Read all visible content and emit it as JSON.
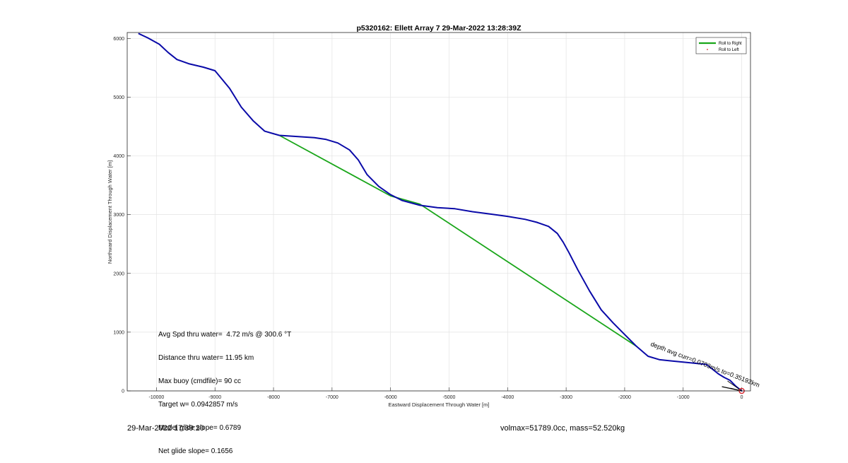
{
  "chart_data": {
    "type": "line",
    "title": "p5320162: Ellett Array 7 29-Mar-2022 13:28:39Z",
    "xlabel": "Eastward Displacement Through Water [m]",
    "ylabel": "Northward Displacement Through Water [m]",
    "xlim": [
      -10500,
      150
    ],
    "ylim": [
      0,
      6100
    ],
    "xticks": [
      -10000,
      -9000,
      -8000,
      -7000,
      -6000,
      -5000,
      -4000,
      -3000,
      -2000,
      -1000,
      0
    ],
    "yticks": [
      0,
      1000,
      2000,
      3000,
      4000,
      5000,
      6000
    ],
    "grid": true,
    "legend_position": "top-right",
    "legend": [
      "Roll to Right",
      "Roll to Left"
    ],
    "series": [
      {
        "name": "Roll to Right",
        "color": "#1aa61a",
        "x": [
          -7900,
          -6000,
          -5500,
          -1800
        ],
        "y": [
          4350,
          3320,
          3180,
          760
        ]
      },
      {
        "name": "",
        "color": "#0a0aa8",
        "x": [
          -10300,
          -10150,
          -9950,
          -9800,
          -9650,
          -9450,
          -9200,
          -9000,
          -8900,
          -8750,
          -8550,
          -8350,
          -8150,
          -7900,
          -7600,
          -7300,
          -7100,
          -6900,
          -6700,
          -6550,
          -6400,
          -6200,
          -6000,
          -5800,
          -5500,
          -5200,
          -4900,
          -4600,
          -4300,
          -4000,
          -3700,
          -3500,
          -3300,
          -3150,
          -3050,
          -2950,
          -2800,
          -2600,
          -2400,
          -2200,
          -2000,
          -1800,
          -1600,
          -1400,
          -1200,
          -1000,
          -800,
          -600,
          -500,
          -400,
          -300,
          -200,
          -100,
          0
        ],
        "y": [
          6080,
          6010,
          5900,
          5760,
          5640,
          5570,
          5510,
          5450,
          5330,
          5150,
          4830,
          4600,
          4420,
          4350,
          4330,
          4310,
          4280,
          4220,
          4100,
          3930,
          3680,
          3480,
          3340,
          3240,
          3160,
          3120,
          3100,
          3050,
          3010,
          2970,
          2920,
          2870,
          2800,
          2680,
          2530,
          2350,
          2060,
          1700,
          1380,
          1160,
          960,
          760,
          590,
          530,
          510,
          490,
          470,
          450,
          370,
          290,
          230,
          180,
          80,
          0
        ]
      }
    ],
    "annotations": [
      "Avg Spd thru water=  4.72 m/s @ 300.6 °T",
      "Distance thru water= 11.95 km",
      "Max buoy (cmdfile)= 90 cc",
      "Target w= 0.0942857 m/s",
      "Model glide slope= 0.6789",
      "Net glide slope= 0.1656"
    ],
    "current_label": "depth avg curr=0.0703m/s to=0.35192km",
    "end_marker": {
      "x": 0,
      "y": 0,
      "color": "#d9232d"
    }
  },
  "footer": {
    "date": "29-Mar-2022 17:39:20",
    "volmax": "volmax=51789.0cc, mass=52.520kg"
  }
}
